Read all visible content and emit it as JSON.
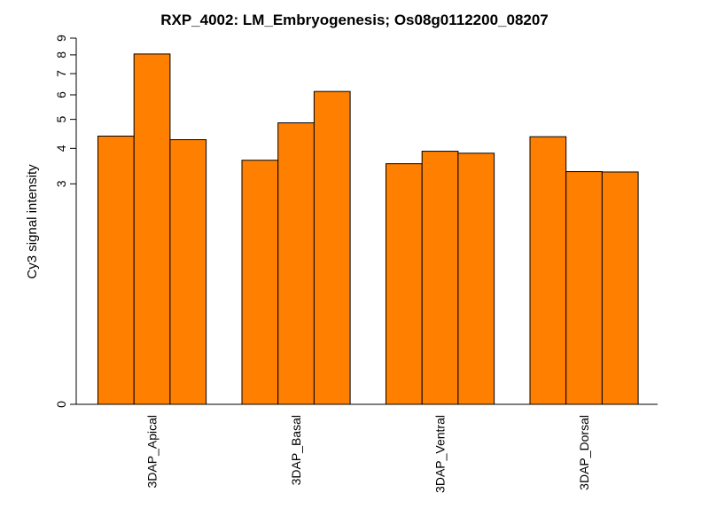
{
  "chart_data": {
    "type": "bar",
    "title": "RXP_4002: LM_Embryogenesis; Os08g0112200_08207",
    "xlabel": "",
    "ylabel": "Cy3 signal intensity",
    "categories": [
      "3DAP_Apical",
      "3DAP_Basal",
      "3DAP_Ventral",
      "3DAP_Dorsal"
    ],
    "bars_per_group": 3,
    "groups": [
      [
        4.4,
        8.05,
        4.28
      ],
      [
        3.64,
        4.87,
        6.15
      ],
      [
        3.54,
        3.91,
        3.85
      ],
      [
        4.38,
        3.32,
        3.31
      ]
    ],
    "y_ticks": [
      "0",
      "3",
      "4",
      "5",
      "6",
      "7",
      "8",
      "9"
    ],
    "y_tick_values": [
      0,
      3,
      4,
      5,
      6,
      7,
      8,
      9
    ],
    "ylim": [
      0,
      9
    ],
    "y_scale": "log1p",
    "bar_color": "#FF7F00",
    "grid": false,
    "legend": "none"
  }
}
